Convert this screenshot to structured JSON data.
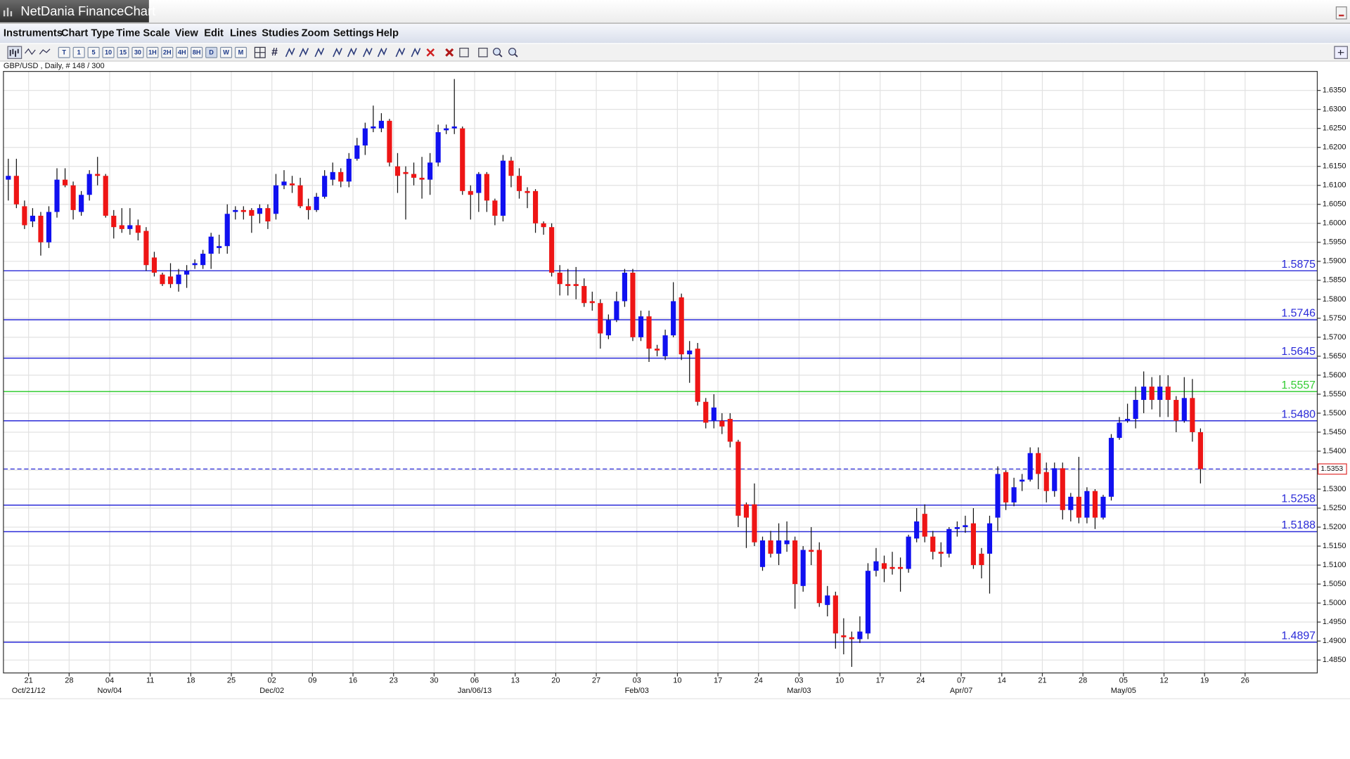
{
  "app": {
    "title": "NetDania FinanceChart",
    "menu": [
      "Instruments",
      "Chart Type",
      "Time Scale",
      "View",
      "Edit",
      "Lines",
      "Studies",
      "Zoom",
      "Settings",
      "Help"
    ],
    "timeframes": [
      "T",
      "1",
      "5",
      "10",
      "15",
      "30",
      "1H",
      "2H",
      "4H",
      "8H",
      "D",
      "W",
      "M"
    ]
  },
  "chart_data": {
    "type": "candlestick",
    "title": "GBP/USD , Daily, # 148 / 300",
    "up_color": "#1010f0",
    "down_color": "#ee1515",
    "grid": true,
    "open": [
      1.6115,
      1.6125,
      1.6045,
      1.6005,
      1.602,
      1.595,
      1.603,
      1.6115,
      1.61,
      1.603,
      1.6075,
      1.613,
      1.6125,
      1.602,
      1.5995,
      1.5985,
      1.5995,
      1.598,
      1.591,
      1.5865,
      1.586,
      1.584,
      1.5865,
      1.589,
      1.589,
      1.592,
      1.5935,
      1.594,
      1.603,
      1.6035,
      1.6035,
      1.6025,
      1.604,
      1.6025,
      1.61,
      1.6105,
      1.61,
      1.6045,
      1.6035,
      1.607,
      1.6115,
      1.6135,
      1.611,
      1.617,
      1.6205,
      1.625,
      1.625,
      1.627,
      1.615,
      1.6135,
      1.613,
      1.612,
      1.6115,
      1.616,
      1.6245,
      1.625,
      1.625,
      1.6085,
      1.608,
      1.613,
      1.606,
      1.602,
      1.6165,
      1.6125,
      1.6085,
      1.6085,
      1.6,
      1.599,
      1.587,
      1.584,
      1.584,
      1.5835,
      1.5795,
      1.579,
      1.5705,
      1.5745,
      1.5795,
      1.587,
      1.57,
      1.5755,
      1.567,
      1.565,
      1.5705,
      1.5805,
      1.5655,
      1.567,
      1.553,
      1.548,
      1.548,
      1.5485,
      1.5425,
      1.526,
      1.526,
      1.5095,
      1.5165,
      1.513,
      1.5155,
      1.5165,
      1.5045,
      1.514,
      1.514,
      1.4995,
      1.502,
      1.4915,
      1.491,
      1.4905,
      1.492,
      1.5085,
      1.5105,
      1.5095,
      1.5095,
      1.509,
      1.517,
      1.5235,
      1.5175,
      1.5135,
      1.513,
      1.5195,
      1.52,
      1.521,
      1.513,
      1.513,
      1.5225,
      1.5345,
      1.5265,
      1.532,
      1.5325,
      1.5395,
      1.5345,
      1.5295,
      1.5355,
      1.5245,
      1.528,
      1.5225,
      1.5295,
      1.5225,
      1.528,
      1.5435,
      1.548,
      1.5485,
      1.5535,
      1.557,
      1.5535,
      1.557,
      1.5535,
      1.548,
      1.554,
      1.545
    ],
    "high": [
      1.617,
      1.617,
      1.606,
      1.604,
      1.603,
      1.6045,
      1.6145,
      1.6145,
      1.611,
      1.6085,
      1.614,
      1.6175,
      1.613,
      1.6035,
      1.604,
      1.604,
      1.601,
      1.599,
      1.5925,
      1.587,
      1.5895,
      1.588,
      1.589,
      1.5905,
      1.593,
      1.5975,
      1.597,
      1.605,
      1.6045,
      1.6045,
      1.604,
      1.605,
      1.605,
      1.613,
      1.614,
      1.6125,
      1.612,
      1.6065,
      1.608,
      1.614,
      1.616,
      1.6145,
      1.6185,
      1.6225,
      1.6265,
      1.631,
      1.629,
      1.6275,
      1.6185,
      1.615,
      1.616,
      1.6175,
      1.6185,
      1.626,
      1.626,
      1.638,
      1.6255,
      1.61,
      1.6135,
      1.6135,
      1.6065,
      1.618,
      1.6175,
      1.6145,
      1.6095,
      1.609,
      1.6005,
      1.6,
      1.589,
      1.588,
      1.5885,
      1.5855,
      1.582,
      1.58,
      1.576,
      1.582,
      1.588,
      1.588,
      1.577,
      1.577,
      1.568,
      1.572,
      1.5845,
      1.5815,
      1.569,
      1.5685,
      1.554,
      1.555,
      1.55,
      1.55,
      1.543,
      1.5265,
      1.5315,
      1.5175,
      1.519,
      1.521,
      1.5215,
      1.5175,
      1.515,
      1.52,
      1.516,
      1.5045,
      1.503,
      1.496,
      1.4925,
      1.4965,
      1.5105,
      1.5145,
      1.5125,
      1.5135,
      1.512,
      1.518,
      1.525,
      1.526,
      1.519,
      1.516,
      1.52,
      1.5215,
      1.523,
      1.525,
      1.5145,
      1.523,
      1.536,
      1.535,
      1.533,
      1.534,
      1.541,
      1.541,
      1.537,
      1.537,
      1.537,
      1.529,
      1.5385,
      1.5305,
      1.53,
      1.5285,
      1.5445,
      1.549,
      1.5525,
      1.557,
      1.561,
      1.5595,
      1.56,
      1.56,
      1.5545,
      1.5595,
      1.559,
      1.546
    ],
    "low": [
      1.606,
      1.604,
      1.5985,
      1.599,
      1.5915,
      1.5935,
      1.6015,
      1.6095,
      1.601,
      1.602,
      1.606,
      1.61,
      1.6015,
      1.596,
      1.5975,
      1.597,
      1.5955,
      1.5875,
      1.586,
      1.5835,
      1.583,
      1.582,
      1.583,
      1.588,
      1.588,
      1.588,
      1.592,
      1.592,
      1.601,
      1.601,
      1.5975,
      1.6,
      1.5985,
      1.601,
      1.609,
      1.608,
      1.604,
      1.601,
      1.603,
      1.6065,
      1.61,
      1.6095,
      1.6095,
      1.6165,
      1.618,
      1.624,
      1.624,
      1.615,
      1.608,
      1.601,
      1.61,
      1.6065,
      1.6075,
      1.615,
      1.6235,
      1.6235,
      1.6075,
      1.601,
      1.603,
      1.603,
      1.5995,
      1.6005,
      1.6095,
      1.6065,
      1.604,
      1.5975,
      1.597,
      1.586,
      1.581,
      1.581,
      1.58,
      1.578,
      1.577,
      1.567,
      1.5695,
      1.574,
      1.578,
      1.569,
      1.569,
      1.5635,
      1.565,
      1.564,
      1.57,
      1.564,
      1.558,
      1.552,
      1.546,
      1.546,
      1.5445,
      1.541,
      1.52,
      1.5145,
      1.515,
      1.5085,
      1.512,
      1.51,
      1.5135,
      1.4985,
      1.503,
      1.51,
      1.499,
      1.4965,
      1.488,
      1.4865,
      1.4832,
      1.4895,
      1.4905,
      1.507,
      1.5055,
      1.5075,
      1.503,
      1.508,
      1.516,
      1.516,
      1.5115,
      1.5095,
      1.512,
      1.5175,
      1.5185,
      1.509,
      1.5065,
      1.5025,
      1.519,
      1.5245,
      1.5255,
      1.5295,
      1.532,
      1.53,
      1.5265,
      1.528,
      1.522,
      1.5215,
      1.521,
      1.521,
      1.5195,
      1.522,
      1.527,
      1.543,
      1.5475,
      1.546,
      1.55,
      1.551,
      1.549,
      1.549,
      1.545,
      1.5475,
      1.5425,
      1.5315
    ],
    "close": [
      1.6125,
      1.605,
      1.5995,
      1.602,
      1.595,
      1.603,
      1.6115,
      1.61,
      1.6035,
      1.6075,
      1.613,
      1.6125,
      1.602,
      1.599,
      1.5985,
      1.5995,
      1.5975,
      1.589,
      1.587,
      1.584,
      1.584,
      1.5865,
      1.5875,
      1.5895,
      1.592,
      1.5965,
      1.594,
      1.6025,
      1.6035,
      1.603,
      1.602,
      1.604,
      1.6005,
      1.61,
      1.611,
      1.61,
      1.6045,
      1.6035,
      1.607,
      1.6125,
      1.6135,
      1.611,
      1.617,
      1.6205,
      1.625,
      1.6255,
      1.627,
      1.616,
      1.6125,
      1.613,
      1.612,
      1.6115,
      1.616,
      1.624,
      1.625,
      1.6255,
      1.6085,
      1.6075,
      1.613,
      1.606,
      1.602,
      1.6165,
      1.6125,
      1.6085,
      1.608,
      1.6,
      1.599,
      1.587,
      1.584,
      1.5835,
      1.5835,
      1.579,
      1.579,
      1.571,
      1.5745,
      1.5795,
      1.587,
      1.57,
      1.5755,
      1.567,
      1.5665,
      1.5705,
      1.5795,
      1.5655,
      1.5665,
      1.553,
      1.5475,
      1.5515,
      1.5465,
      1.5425,
      1.523,
      1.5225,
      1.516,
      1.5165,
      1.513,
      1.5165,
      1.5165,
      1.505,
      1.514,
      1.5135,
      1.5,
      1.502,
      1.492,
      1.491,
      1.4905,
      1.4925,
      1.5085,
      1.511,
      1.509,
      1.509,
      1.509,
      1.5175,
      1.5215,
      1.5175,
      1.5135,
      1.513,
      1.5195,
      1.52,
      1.5205,
      1.51,
      1.51,
      1.521,
      1.534,
      1.5265,
      1.5305,
      1.5325,
      1.5395,
      1.534,
      1.5295,
      1.5355,
      1.5245,
      1.528,
      1.5225,
      1.5295,
      1.5225,
      1.528,
      1.5435,
      1.5475,
      1.5485,
      1.5535,
      1.557,
      1.5535,
      1.557,
      1.5535,
      1.548,
      1.554,
      1.545,
      1.5353
    ],
    "levels": [
      {
        "value": 1.5875,
        "color": "#2a2ad8"
      },
      {
        "value": 1.5746,
        "color": "#2a2ad8"
      },
      {
        "value": 1.5645,
        "color": "#2a2ad8"
      },
      {
        "value": 1.5557,
        "color": "#33cc33"
      },
      {
        "value": 1.548,
        "label": "1.5480",
        "color": "#2a2ad8"
      },
      {
        "value": 1.5258,
        "color": "#2a2ad8"
      },
      {
        "value": 1.5188,
        "color": "#2a2ad8"
      },
      {
        "value": 1.4897,
        "color": "#2a2ad8"
      }
    ],
    "last_price": {
      "value": 1.5353,
      "color": "#2a2ad8",
      "box_color": "#e03030"
    },
    "xlim": [
      -0.6,
      161.4
    ],
    "ylim": [
      1.4816,
      1.64
    ],
    "xticks": [
      {
        "value": 2.5,
        "label": "21"
      },
      {
        "value": 7.5,
        "label": "28"
      },
      {
        "value": 12.5,
        "label": "04"
      },
      {
        "value": 17.5,
        "label": "11"
      },
      {
        "value": 22.5,
        "label": "18"
      },
      {
        "value": 27.5,
        "label": "25"
      },
      {
        "value": 32.5,
        "label": "02"
      },
      {
        "value": 37.5,
        "label": "09"
      },
      {
        "value": 42.5,
        "label": "16"
      },
      {
        "value": 47.5,
        "label": "23"
      },
      {
        "value": 52.5,
        "label": "30"
      },
      {
        "value": 57.5,
        "label": "06"
      },
      {
        "value": 62.5,
        "label": "13"
      },
      {
        "value": 67.5,
        "label": "20"
      },
      {
        "value": 72.5,
        "label": "27"
      },
      {
        "value": 77.5,
        "label": "03"
      },
      {
        "value": 82.5,
        "label": "10"
      },
      {
        "value": 87.5,
        "label": "17"
      },
      {
        "value": 92.5,
        "label": "24"
      },
      {
        "value": 97.5,
        "label": "03"
      },
      {
        "value": 102.5,
        "label": "10"
      },
      {
        "value": 107.5,
        "label": "17"
      },
      {
        "value": 112.5,
        "label": "24"
      },
      {
        "value": 117.5,
        "label": "07"
      },
      {
        "value": 122.5,
        "label": "14"
      },
      {
        "value": 127.5,
        "label": "21"
      },
      {
        "value": 132.5,
        "label": "28"
      },
      {
        "value": 137.5,
        "label": "05"
      },
      {
        "value": 142.5,
        "label": "12"
      },
      {
        "value": 147.5,
        "label": "19"
      },
      {
        "value": 152.5,
        "label": "26"
      }
    ],
    "xticks_months": [
      {
        "value": 2.5,
        "label": "Oct/21/12"
      },
      {
        "value": 12.5,
        "label": "Nov/04"
      },
      {
        "value": 32.5,
        "label": "Dec/02"
      },
      {
        "value": 57.5,
        "label": "Jan/06/13"
      },
      {
        "value": 77.5,
        "label": "Feb/03"
      },
      {
        "value": 97.5,
        "label": "Mar/03"
      },
      {
        "value": 117.5,
        "label": "Apr/07"
      },
      {
        "value": 137.5,
        "label": "May/05"
      }
    ],
    "yticks": [
      {
        "value": 1.485,
        "label": "1.4850"
      },
      {
        "value": 1.49,
        "label": "1.4900"
      },
      {
        "value": 1.495,
        "label": "1.4950"
      },
      {
        "value": 1.5,
        "label": "1.5000"
      },
      {
        "value": 1.505,
        "label": "1.5050"
      },
      {
        "value": 1.51,
        "label": "1.5100"
      },
      {
        "value": 1.515,
        "label": "1.5150"
      },
      {
        "value": 1.52,
        "label": "1.5200"
      },
      {
        "value": 1.525,
        "label": "1.5250"
      },
      {
        "value": 1.53,
        "label": "1.5300"
      },
      {
        "value": 1.535,
        "label": "1.5350"
      },
      {
        "value": 1.54,
        "label": "1.5400"
      },
      {
        "value": 1.545,
        "label": "1.5450"
      },
      {
        "value": 1.55,
        "label": "1.5500"
      },
      {
        "value": 1.555,
        "label": "1.5550"
      },
      {
        "value": 1.56,
        "label": "1.5600"
      },
      {
        "value": 1.565,
        "label": "1.5650"
      },
      {
        "value": 1.57,
        "label": "1.5700"
      },
      {
        "value": 1.575,
        "label": "1.5750"
      },
      {
        "value": 1.58,
        "label": "1.5800"
      },
      {
        "value": 1.585,
        "label": "1.5850"
      },
      {
        "value": 1.59,
        "label": "1.5900"
      },
      {
        "value": 1.595,
        "label": "1.5950"
      },
      {
        "value": 1.6,
        "label": "1.6000"
      },
      {
        "value": 1.605,
        "label": "1.6050"
      },
      {
        "value": 1.61,
        "label": "1.6100"
      },
      {
        "value": 1.615,
        "label": "1.6150"
      },
      {
        "value": 1.62,
        "label": "1.6200"
      },
      {
        "value": 1.625,
        "label": "1.6250"
      },
      {
        "value": 1.63,
        "label": "1.6300"
      },
      {
        "value": 1.635,
        "label": "1.6350"
      }
    ]
  }
}
